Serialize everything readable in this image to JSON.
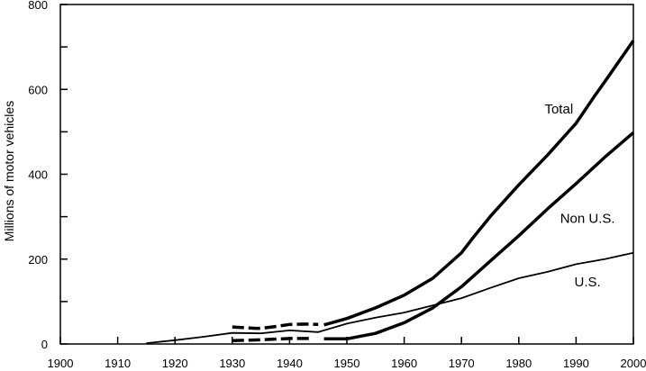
{
  "chart_data": {
    "type": "line",
    "title": "",
    "xlabel": "",
    "ylabel": "Millions of motor vehicles",
    "xlim": [
      1900,
      2000
    ],
    "ylim": [
      0,
      800
    ],
    "x_ticks": [
      1900,
      1910,
      1920,
      1930,
      1940,
      1950,
      1960,
      1970,
      1980,
      1990,
      2000
    ],
    "y_ticks": [
      0,
      200,
      400,
      600,
      800
    ],
    "y_minor_ticks": [
      100,
      300,
      500,
      700
    ],
    "grid": false,
    "legend": "none",
    "colors": {
      "line": "#000000",
      "axis": "#000000"
    },
    "series": [
      {
        "name": "Total",
        "style": "thick",
        "segments": [
          {
            "dashed": true,
            "points": [
              [
                1930,
                40
              ],
              [
                1934,
                37
              ],
              [
                1935,
                37
              ],
              [
                1938,
                42
              ],
              [
                1940,
                46
              ],
              [
                1943,
                47
              ],
              [
                1945,
                46
              ]
            ]
          },
          {
            "dashed": false,
            "points": [
              [
                1946,
                45
              ],
              [
                1950,
                60
              ],
              [
                1955,
                85
              ],
              [
                1960,
                115
              ],
              [
                1965,
                155
              ],
              [
                1970,
                215
              ],
              [
                1972,
                250
              ],
              [
                1975,
                300
              ],
              [
                1980,
                375
              ],
              [
                1985,
                445
              ],
              [
                1990,
                520
              ],
              [
                1993,
                580
              ],
              [
                1995,
                618
              ],
              [
                2000,
                715
              ]
            ]
          }
        ]
      },
      {
        "name": "Non U.S.",
        "style": "thick",
        "segments": [
          {
            "dashed": true,
            "points": [
              [
                1930,
                8
              ],
              [
                1935,
                10
              ],
              [
                1940,
                13
              ],
              [
                1944,
                13
              ]
            ]
          },
          {
            "dashed": false,
            "points": [
              [
                1946,
                12
              ],
              [
                1950,
                12
              ],
              [
                1955,
                25
              ],
              [
                1960,
                50
              ],
              [
                1965,
                85
              ],
              [
                1970,
                135
              ],
              [
                1975,
                195
              ],
              [
                1980,
                255
              ],
              [
                1985,
                318
              ],
              [
                1990,
                378
              ],
              [
                1995,
                440
              ],
              [
                2000,
                498
              ]
            ]
          }
        ]
      },
      {
        "name": "U.S.",
        "style": "thin",
        "segments": [
          {
            "dashed": false,
            "points": [
              [
                1915,
                2
              ],
              [
                1920,
                9
              ],
              [
                1925,
                17
              ],
              [
                1930,
                26
              ],
              [
                1935,
                25
              ],
              [
                1940,
                32
              ],
              [
                1945,
                28
              ],
              [
                1950,
                48
              ],
              [
                1955,
                62
              ],
              [
                1960,
                74
              ],
              [
                1965,
                91
              ],
              [
                1970,
                108
              ],
              [
                1975,
                132
              ],
              [
                1980,
                155
              ],
              [
                1985,
                170
              ],
              [
                1990,
                188
              ],
              [
                1995,
                200
              ],
              [
                2000,
                215
              ]
            ]
          }
        ]
      }
    ],
    "annotations": [
      {
        "text": "Total",
        "x": 1987,
        "y": 543
      },
      {
        "text": "Non U.S.",
        "x": 1992,
        "y": 285
      },
      {
        "text": "U.S.",
        "x": 1992,
        "y": 136
      }
    ]
  }
}
